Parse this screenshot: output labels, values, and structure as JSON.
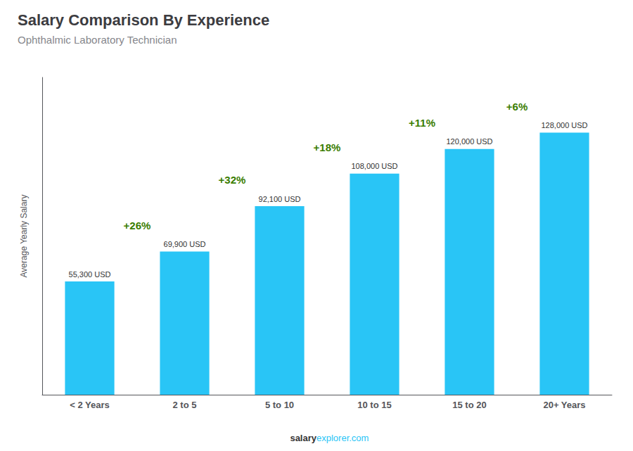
{
  "chart_data": {
    "type": "bar",
    "title": "Salary Comparison By Experience",
    "subtitle": "Ophthalmic Laboratory Technician",
    "categories": [
      "< 2 Years",
      "2 to 5",
      "5 to 10",
      "10 to 15",
      "15 to 20",
      "20+ Years"
    ],
    "values": [
      55300,
      69900,
      92100,
      108000,
      120000,
      128000
    ],
    "value_labels": [
      "55,300 USD",
      "69,900 USD",
      "92,100 USD",
      "108,000 USD",
      "120,000 USD",
      "128,000 USD"
    ],
    "data_labels": true,
    "color": "#29c5f6",
    "ylabel": "Average Yearly Salary",
    "ylim": [
      0,
      155000
    ],
    "tick_labels": "x",
    "grid": false,
    "annotations": [
      {
        "text": "+26%",
        "from": "< 2 Years",
        "to": "2 to 5"
      },
      {
        "text": "+32%",
        "from": "2 to 5",
        "to": "5 to 10"
      },
      {
        "text": "+18%",
        "from": "5 to 10",
        "to": "10 to 15"
      },
      {
        "text": "+11%",
        "from": "10 to 15",
        "to": "15 to 20"
      },
      {
        "text": "+6%",
        "from": "15 to 20",
        "to": "20+ Years"
      },
      {
        "text": "salary"
      },
      {
        "text": "explorer.com"
      }
    ]
  }
}
